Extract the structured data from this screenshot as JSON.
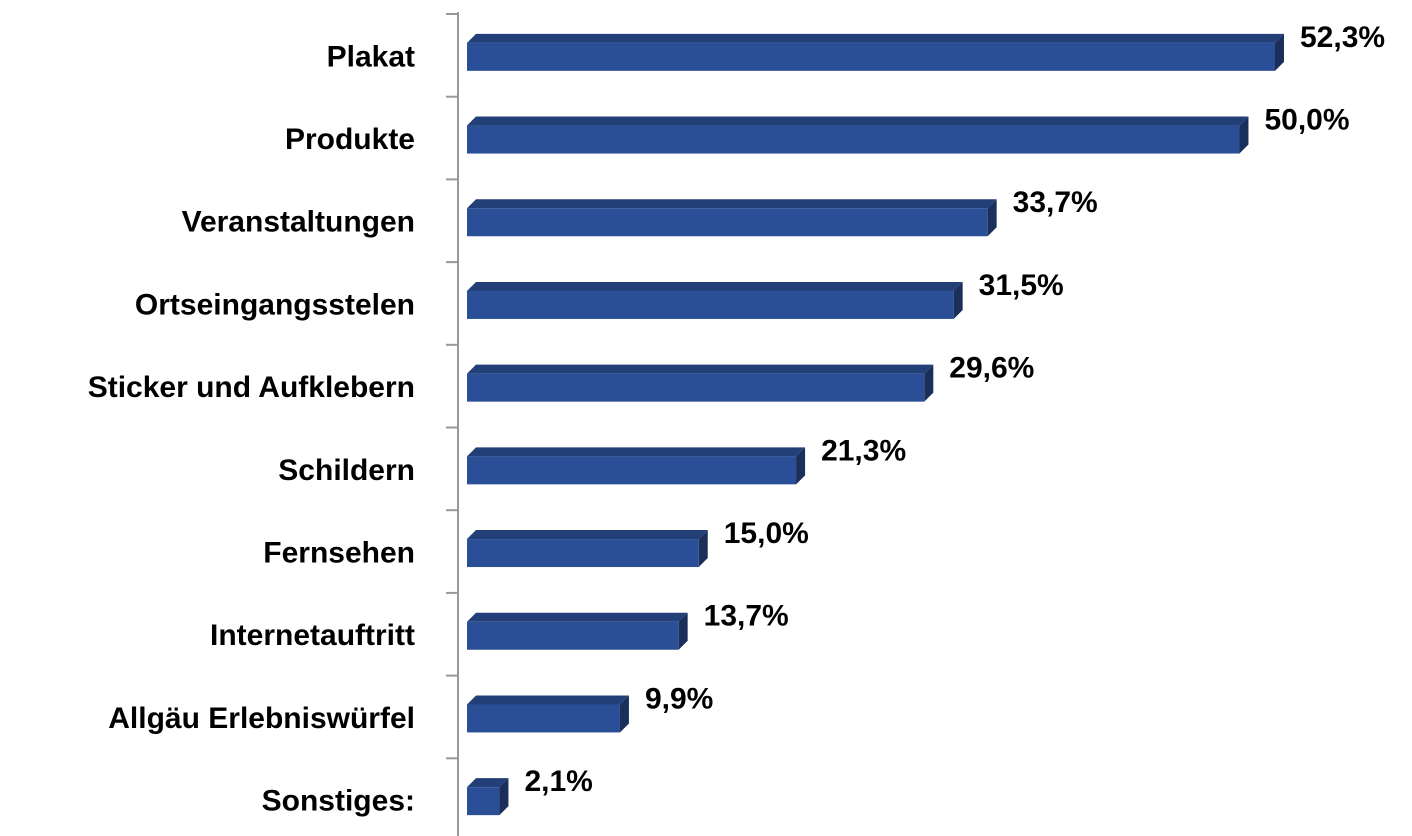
{
  "chart_data": {
    "type": "bar",
    "orientation": "horizontal",
    "categories": [
      "Plakat",
      "Produkte",
      "Veranstaltungen",
      "Ortseingangsstelen",
      "Sticker und Aufklebern",
      "Schildern",
      "Fernsehen",
      "Internetauftritt",
      "Allgäu Erlebniswürfel",
      "Sonstiges:"
    ],
    "values": [
      52.3,
      50.0,
      33.7,
      31.5,
      29.6,
      21.3,
      15.0,
      13.7,
      9.9,
      2.1
    ],
    "value_labels": [
      "52,3%",
      "50,0%",
      "33,7%",
      "31,5%",
      "29,6%",
      "21,3%",
      "15,0%",
      "13,7%",
      "9,9%",
      "2,1%"
    ],
    "color": "#2b4f96"
  }
}
